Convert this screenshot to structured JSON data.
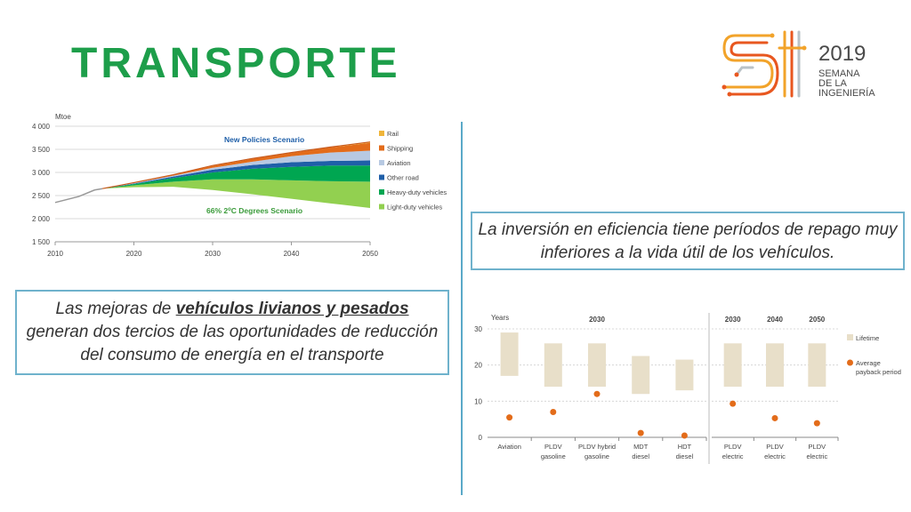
{
  "page": {
    "title": "TRANSPORTE",
    "logo": {
      "big": "SI",
      "year": "2019",
      "line1": "SEMANA",
      "line2": "DE LA",
      "line3": "INGENIERÍA",
      "colors": [
        "#f2a32a",
        "#e8571f",
        "#b9c2c7"
      ]
    },
    "callout_left": {
      "pre": "Las mejoras de ",
      "bold": "vehículos livianos y pesados",
      "post": " generan dos tercios de las oportunidades de reducción del consumo de energía en el transporte"
    },
    "callout_right": "La inversión en eficiencia tiene períodos de repago muy inferiores a la vida útil de los vehículos."
  },
  "chart_data": [
    {
      "type": "area",
      "ylabel": "Mtoe",
      "x": [
        2010,
        2015,
        2020,
        2025,
        2030,
        2035,
        2040,
        2045,
        2050
      ],
      "xticks": [
        2010,
        2020,
        2030,
        2040,
        2050
      ],
      "yticks": [
        "1 500",
        "2 000",
        "2 500",
        "3 000",
        "3 500",
        "4 000"
      ],
      "ylim": [
        1500,
        4000
      ],
      "xlim": [
        2010,
        2050
      ],
      "history": {
        "x": [
          2010,
          2013,
          2015,
          2016
        ],
        "y": [
          2350,
          2480,
          2620,
          2650
        ]
      },
      "base_line": {
        "x": [
          2016,
          2020,
          2025,
          2030,
          2035,
          2040,
          2045,
          2050
        ],
        "y": [
          2650,
          2680,
          2690,
          2620,
          2530,
          2430,
          2330,
          2230
        ]
      },
      "top_line": {
        "x": [
          2016,
          2020,
          2025,
          2030,
          2035,
          2040,
          2045,
          2050
        ],
        "y": [
          2650,
          2780,
          2950,
          3150,
          3300,
          3430,
          3550,
          3660
        ]
      },
      "series": [
        {
          "name": "Light-duty vehicles",
          "color": "#92d050",
          "tops": [
            2650,
            2720,
            2800,
            2850,
            2850,
            2830,
            2810,
            2800
          ]
        },
        {
          "name": "Heavy-duty vehicles",
          "color": "#00a651",
          "tops": [
            2650,
            2750,
            2880,
            3000,
            3080,
            3120,
            3150,
            3150
          ]
        },
        {
          "name": "Other road",
          "color": "#1f5fa8",
          "tops": [
            2650,
            2760,
            2910,
            3060,
            3160,
            3220,
            3250,
            3260
          ]
        },
        {
          "name": "Aviation",
          "color": "#b7c9e2",
          "tops": [
            2650,
            2770,
            2930,
            3100,
            3230,
            3350,
            3430,
            3470
          ]
        },
        {
          "name": "Shipping",
          "color": "#e36c1a",
          "tops": [
            2650,
            2778,
            2945,
            3140,
            3290,
            3420,
            3540,
            3640
          ]
        },
        {
          "name": "Rail",
          "color": "#f0b53a",
          "tops": [
            2650,
            2780,
            2950,
            3150,
            3300,
            3430,
            3550,
            3660
          ]
        }
      ],
      "annotations": {
        "top": "New Policies Scenario",
        "bottom_main": "66% 2",
        "bottom_sup": "o",
        "bottom_rest": "C Degrees Scenario"
      },
      "colors": {
        "top_text": "#1f5fa8",
        "bottom_text": "#3a9b3a",
        "history": "#999999"
      }
    },
    {
      "type": "bar",
      "ylabel": "Years",
      "ylim": [
        0,
        30
      ],
      "yticks": [
        "0",
        "10",
        "20",
        "30"
      ],
      "groups": [
        {
          "header": "2030",
          "categories": [
            {
              "line1": "Aviation",
              "line2": "",
              "lifetime": [
                17,
                29
              ],
              "payback": 5.5
            },
            {
              "line1": "PLDV",
              "line2": "gasoline",
              "lifetime": [
                14,
                26
              ],
              "payback": 7
            },
            {
              "line1": "PLDV hybrid",
              "line2": "gasoline",
              "lifetime": [
                14,
                26
              ],
              "payback": 12
            },
            {
              "line1": "MDT",
              "line2": "diesel",
              "lifetime": [
                12,
                22.5
              ],
              "payback": 1.2
            },
            {
              "line1": "HDT",
              "line2": "diesel",
              "lifetime": [
                13,
                21.5
              ],
              "payback": 0.5
            }
          ]
        },
        {
          "header": "",
          "categories": [
            {
              "line1": "PLDV",
              "line2": "electric",
              "lifetime": [
                14,
                26
              ],
              "payback": 9.3,
              "header": "2030"
            },
            {
              "line1": "PLDV",
              "line2": "electric",
              "lifetime": [
                14,
                26
              ],
              "payback": 5.3,
              "header": "2040"
            },
            {
              "line1": "PLDV",
              "line2": "electric",
              "lifetime": [
                14,
                26
              ],
              "payback": 3.9,
              "header": "2050"
            }
          ]
        }
      ],
      "legend": [
        {
          "label": "Lifetime",
          "color": "#e8dfc9"
        },
        {
          "label1": "Average",
          "label2": "payback period",
          "color": "#e36c1a"
        }
      ]
    }
  ]
}
